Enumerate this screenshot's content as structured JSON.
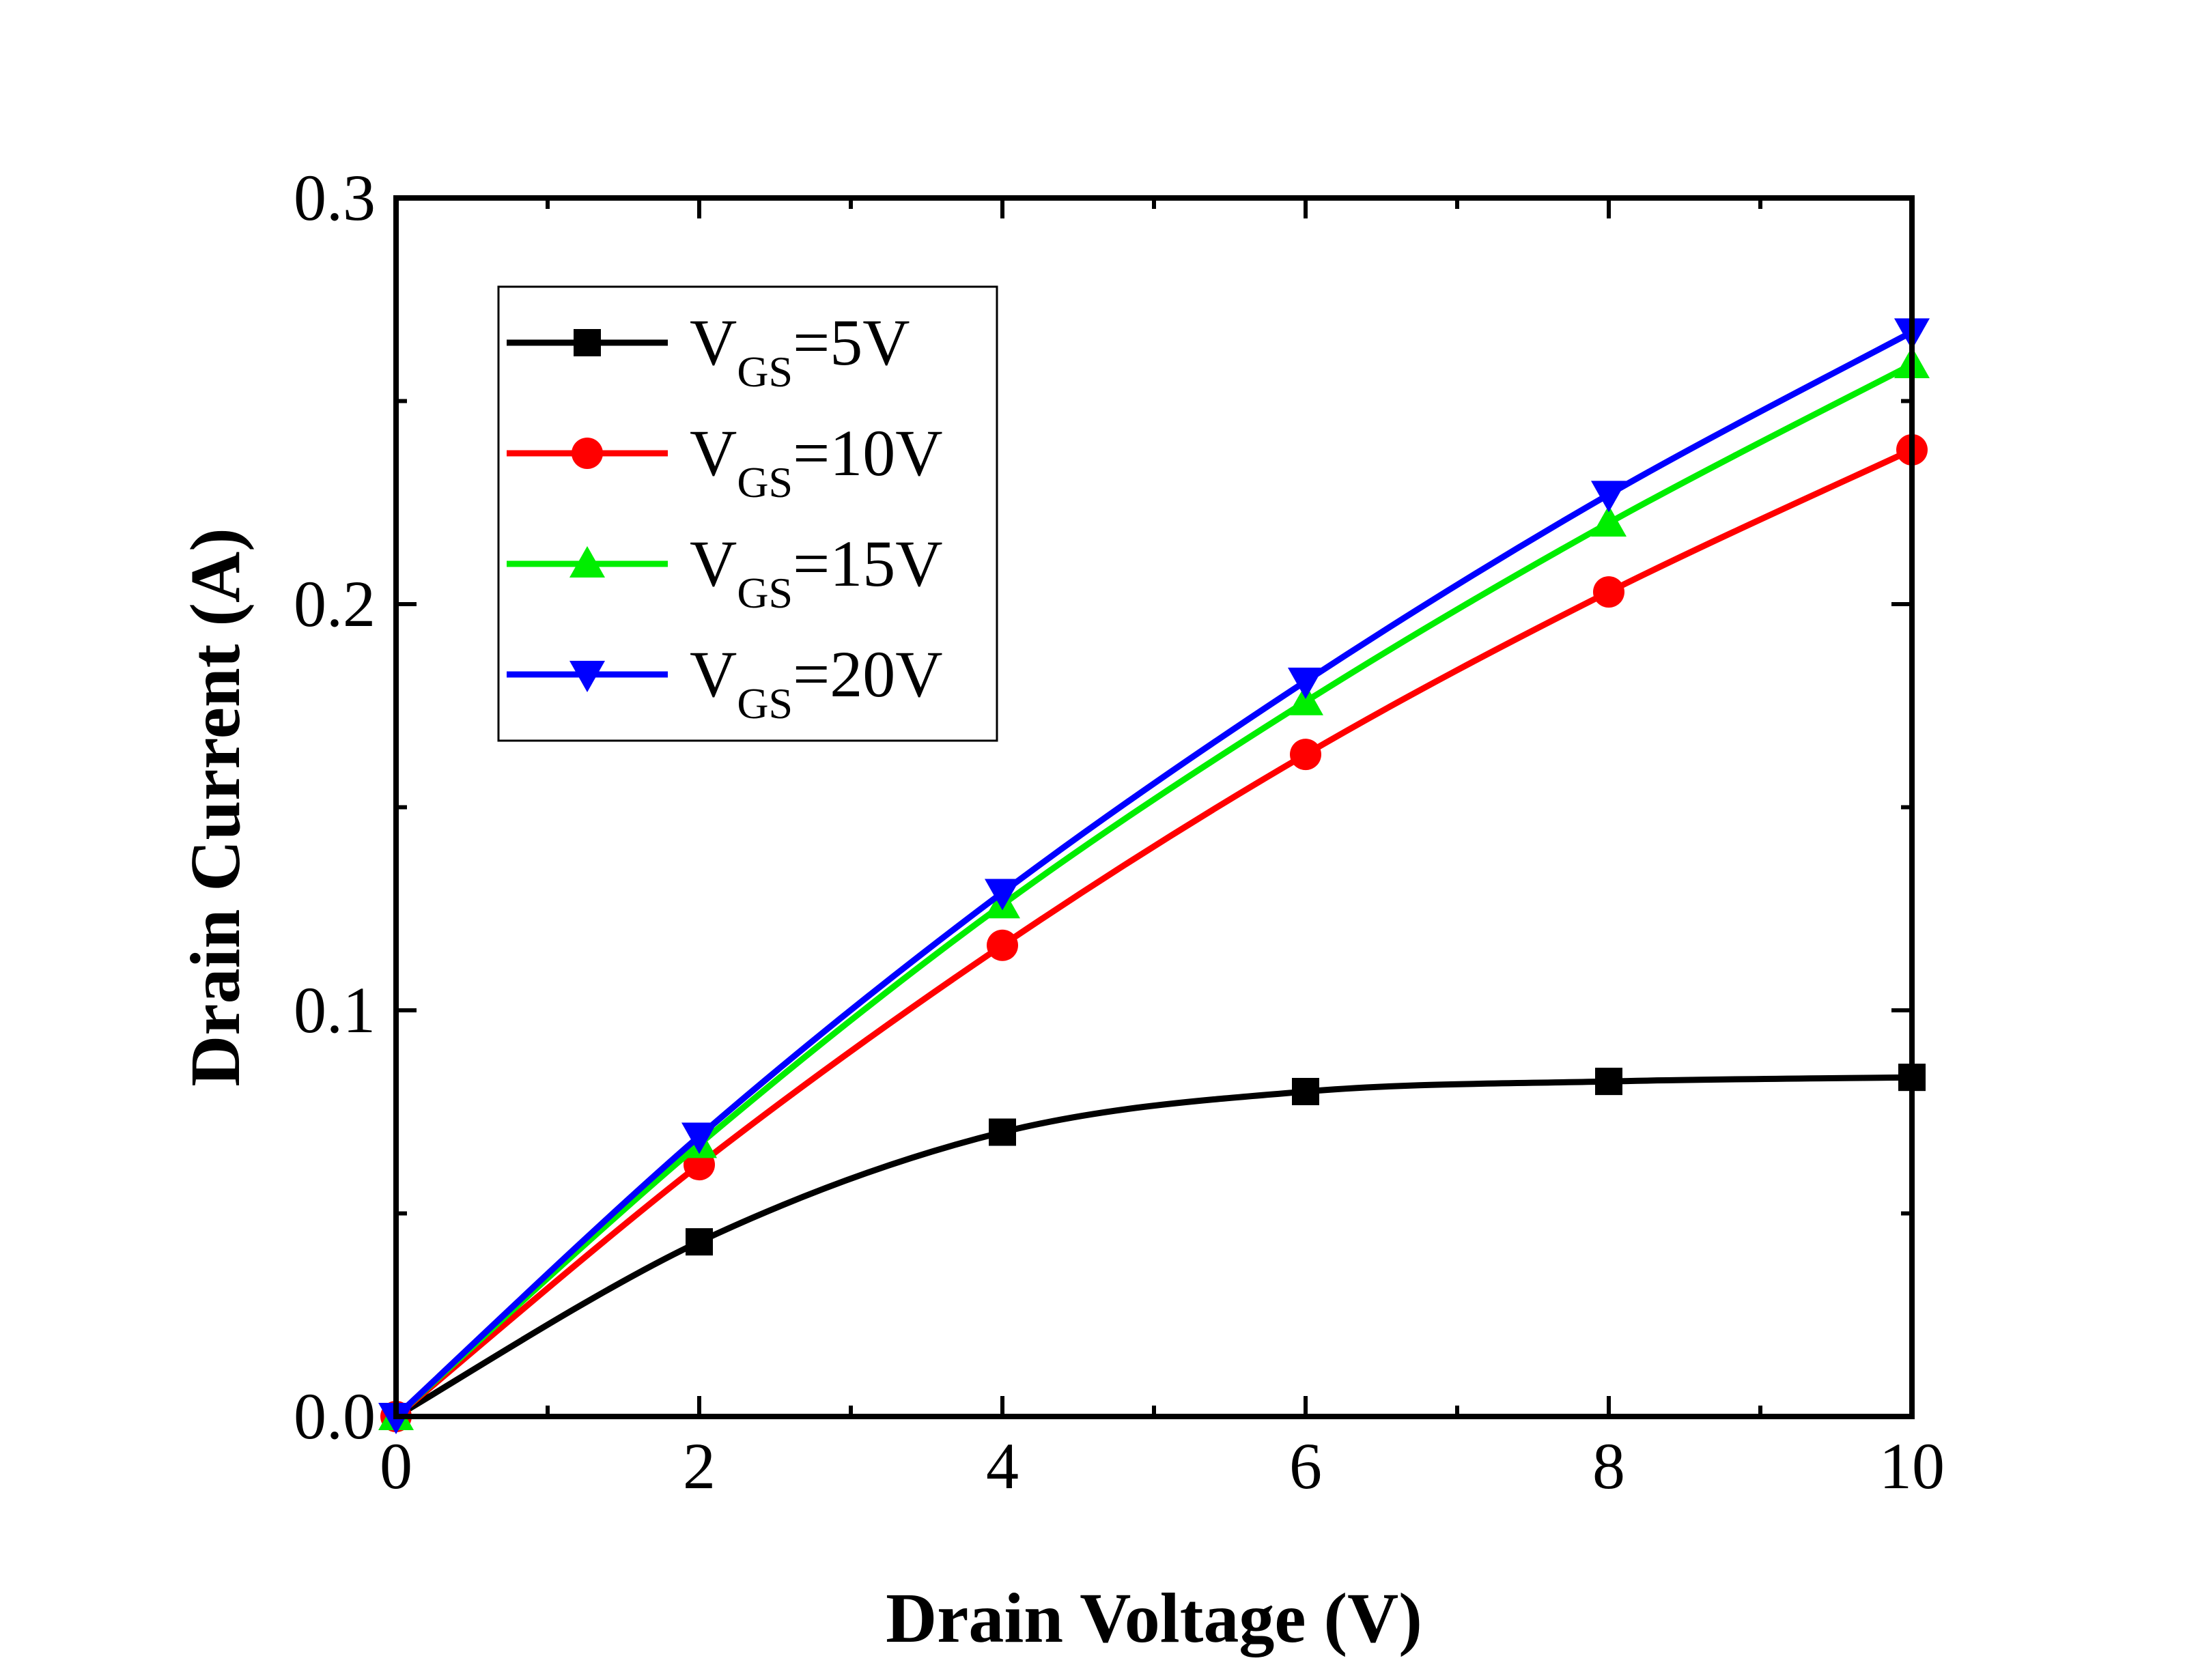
{
  "chart_data": {
    "type": "line",
    "title": "",
    "xlabel": "Drain Voltage (V)",
    "ylabel": "Drain Current (A)",
    "xlim": [
      0,
      10
    ],
    "ylim": [
      0,
      0.3
    ],
    "xticks": [
      0,
      2,
      4,
      6,
      8,
      10
    ],
    "xtick_labels": [
      "0",
      "2",
      "4",
      "6",
      "8",
      "10"
    ],
    "yticks": [
      0.0,
      0.1,
      0.2,
      0.3
    ],
    "ytick_labels": [
      "0.0",
      "0.1",
      "0.2",
      "0.3"
    ],
    "grid": false,
    "legend_position": "top-left",
    "x": [
      0,
      2,
      4,
      6,
      8,
      10
    ],
    "series": [
      {
        "name": "VGS=5V",
        "label_main": "V",
        "label_sub": "GS",
        "label_rest": "=5V",
        "color": "#000000",
        "marker": "square",
        "values": [
          0.0,
          0.043,
          0.07,
          0.08,
          0.0825,
          0.0835
        ]
      },
      {
        "name": "VGS=10V",
        "label_main": "V",
        "label_sub": "GS",
        "label_rest": "=10V",
        "color": "#ff0000",
        "marker": "circle",
        "values": [
          0.0,
          0.062,
          0.116,
          0.163,
          0.203,
          0.238
        ]
      },
      {
        "name": "VGS=15V",
        "label_main": "V",
        "label_sub": "GS",
        "label_rest": "=15V",
        "color": "#00ee00",
        "marker": "triangle-up",
        "values": [
          0.0,
          0.067,
          0.126,
          0.176,
          0.22,
          0.259
        ]
      },
      {
        "name": "VGS=20V",
        "label_main": "V",
        "label_sub": "GS",
        "label_rest": "=20V",
        "color": "#0000ff",
        "marker": "triangle-down",
        "values": [
          0.0,
          0.069,
          0.129,
          0.181,
          0.227,
          0.267
        ]
      }
    ]
  }
}
